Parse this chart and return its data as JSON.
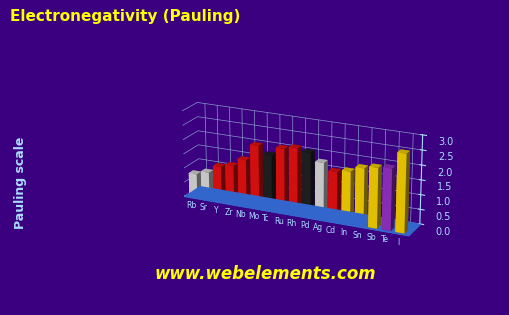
{
  "elements": [
    "Rb",
    "Sr",
    "Y",
    "Zr",
    "Nb",
    "Mo",
    "Tc",
    "Ru",
    "Rh",
    "Pd",
    "Ag",
    "Cd",
    "In",
    "Sn",
    "Sb",
    "Te",
    "I"
  ],
  "values": [
    0.82,
    0.95,
    1.22,
    1.33,
    1.6,
    2.16,
    1.9,
    2.2,
    2.28,
    2.2,
    1.93,
    1.69,
    1.78,
    1.96,
    2.05,
    2.1,
    2.66
  ],
  "colors": [
    "#e0e0e0",
    "#e0e0e0",
    "#ee1111",
    "#ee1111",
    "#ee1111",
    "#ee1111",
    "#222222",
    "#ee1111",
    "#ee1111",
    "#222222",
    "#e0e0e0",
    "#ee1111",
    "#ffd700",
    "#ffd700",
    "#ffd700",
    "#9933cc",
    "#ffd700"
  ],
  "title": "Electronegativity (Pauling)",
  "ylabel": "Pauling scale",
  "ylim": [
    0.0,
    3.0
  ],
  "yticks": [
    0.0,
    0.5,
    1.0,
    1.5,
    2.0,
    2.5,
    3.0
  ],
  "bg_color": "#3a0080",
  "title_color": "#ffff00",
  "axis_color": "#aaddff",
  "watermark": "www.webelements.com",
  "watermark_color": "#ffff00"
}
